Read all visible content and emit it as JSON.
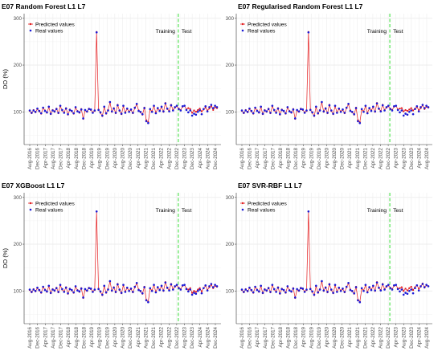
{
  "chart_data": [
    {
      "type": "line",
      "title": "E07 Random Forest L1 L7",
      "ylabel": "DO (%)",
      "xlabel": "",
      "ylim": [
        30,
        310
      ],
      "yticks": [
        100,
        200,
        300
      ],
      "x_ticks": [
        "Aug-2016",
        "Dec-2016",
        "Apr-2017",
        "Aug-2017",
        "Dec-2017",
        "Apr-2018",
        "Aug-2018",
        "Dec-2018",
        "Apr-2019",
        "Aug-2019",
        "Dec-2019",
        "Apr-2020",
        "Aug-2020",
        "Dec-2020",
        "Apr-2021",
        "Aug-2021",
        "Dec-2021",
        "Apr-2022",
        "Aug-2022",
        "Dec-2022",
        "Aug-2023",
        "Dec-2023",
        "Apr-2024",
        "Aug-2024",
        "Dec-2024"
      ],
      "split_at": "Dec-2022",
      "training_label": "Training",
      "test_label": "Test",
      "legend": [
        "Predicted values",
        "Real values"
      ],
      "legend_position": "top-left",
      "grid": true,
      "series": [
        {
          "name": "Predicted values",
          "color": "#e41a1c",
          "values": [
            102,
            97,
            104,
            99,
            106,
            101,
            96,
            108,
            103,
            98,
            110,
            95,
            104,
            100,
            107,
            97,
            112,
            103,
            99,
            108,
            94,
            105,
            101,
            96,
            109,
            102,
            98,
            106,
            85,
            103,
            100,
            107,
            104,
            99,
            102,
            271,
            105,
            98,
            91,
            110,
            96,
            104,
            120,
            100,
            108,
            97,
            115,
            102,
            95,
            112,
            99,
            106,
            101,
            104,
            97,
            108,
            116,
            103,
            99,
            94,
            109,
            82,
            78,
            105,
            101,
            112,
            98,
            107,
            103,
            110,
            100,
            119,
            106,
            102,
            115,
            104,
            109,
            112,
            107,
            104,
            111,
            113,
            105,
            108,
            106,
            98,
            103,
            100,
            104,
            107,
            101,
            105,
            109,
            103,
            107,
            112,
            104,
            110,
            108
          ]
        },
        {
          "name": "Real values",
          "color": "#1a1ad6",
          "values": [
            103,
            98,
            103,
            100,
            107,
            102,
            97,
            109,
            102,
            99,
            111,
            96,
            103,
            101,
            106,
            98,
            113,
            104,
            98,
            107,
            95,
            104,
            102,
            97,
            110,
            101,
            99,
            105,
            86,
            104,
            101,
            106,
            105,
            98,
            103,
            270,
            104,
            99,
            92,
            111,
            97,
            103,
            121,
            101,
            107,
            98,
            114,
            103,
            96,
            113,
            98,
            107,
            100,
            105,
            98,
            109,
            117,
            102,
            100,
            95,
            108,
            80,
            76,
            106,
            100,
            113,
            97,
            108,
            102,
            111,
            101,
            118,
            107,
            101,
            114,
            103,
            110,
            113,
            106,
            103,
            112,
            113,
            104,
            99,
            103,
            92,
            96,
            94,
            100,
            103,
            95,
            106,
            112,
            101,
            110,
            115,
            108,
            113,
            110
          ]
        }
      ]
    },
    {
      "type": "line",
      "title": "E07 Regularised Random Forest L1 L7",
      "ylabel": "",
      "xlabel": "",
      "ylim": [
        30,
        310
      ],
      "yticks": [
        100,
        200,
        300
      ],
      "x_ticks": [
        "Aug-2016",
        "Dec-2016",
        "Apr-2017",
        "Aug-2017",
        "Dec-2017",
        "Apr-2018",
        "Aug-2018",
        "Dec-2018",
        "Apr-2019",
        "Aug-2019",
        "Dec-2019",
        "Apr-2020",
        "Aug-2020",
        "Dec-2020",
        "Apr-2021",
        "Aug-2021",
        "Dec-2021",
        "Apr-2022",
        "Aug-2022",
        "Dec-2022",
        "Apr-2023",
        "Aug-2023",
        "Dec-2023",
        "Apr-2024",
        "Aug-2024"
      ],
      "split_at": "Dec-2022",
      "training_label": "Training",
      "test_label": "Test",
      "legend": [
        "Predicted values",
        "Real values"
      ],
      "legend_position": "top-left",
      "grid": true,
      "series": [
        {
          "name": "Predicted values",
          "color": "#e41a1c",
          "values": [
            102,
            97,
            104,
            99,
            106,
            101,
            96,
            108,
            103,
            98,
            110,
            95,
            104,
            100,
            107,
            97,
            112,
            103,
            99,
            108,
            94,
            105,
            101,
            96,
            109,
            102,
            98,
            106,
            85,
            103,
            100,
            107,
            104,
            99,
            102,
            271,
            105,
            98,
            91,
            110,
            96,
            104,
            120,
            100,
            108,
            97,
            115,
            102,
            95,
            112,
            99,
            106,
            101,
            104,
            97,
            108,
            116,
            103,
            99,
            94,
            109,
            82,
            78,
            105,
            101,
            112,
            98,
            107,
            103,
            110,
            100,
            119,
            106,
            102,
            115,
            104,
            109,
            112,
            107,
            104,
            111,
            113,
            105,
            107,
            108,
            101,
            104,
            102,
            105,
            108,
            103,
            107,
            110,
            104,
            108,
            114,
            106,
            111,
            109
          ]
        },
        {
          "name": "Real values",
          "color": "#1a1ad6",
          "values": [
            103,
            98,
            103,
            100,
            107,
            102,
            97,
            109,
            102,
            99,
            111,
            96,
            103,
            101,
            106,
            98,
            113,
            104,
            98,
            107,
            95,
            104,
            102,
            97,
            110,
            101,
            99,
            105,
            86,
            104,
            101,
            106,
            105,
            98,
            103,
            270,
            104,
            99,
            92,
            111,
            97,
            103,
            121,
            101,
            107,
            98,
            114,
            103,
            96,
            113,
            98,
            107,
            100,
            105,
            98,
            109,
            117,
            102,
            100,
            95,
            108,
            80,
            76,
            106,
            100,
            113,
            97,
            108,
            102,
            111,
            101,
            118,
            107,
            101,
            114,
            103,
            110,
            113,
            106,
            103,
            112,
            113,
            104,
            99,
            103,
            92,
            96,
            94,
            100,
            103,
            95,
            106,
            112,
            101,
            110,
            115,
            108,
            113,
            110
          ]
        }
      ]
    },
    {
      "type": "line",
      "title": "E07 XGBoost L1 L7",
      "ylabel": "DO (%)",
      "xlabel": "",
      "ylim": [
        30,
        310
      ],
      "yticks": [
        100,
        200,
        300
      ],
      "x_ticks": [
        "Aug-2016",
        "Dec-2016",
        "Apr-2017",
        "Aug-2017",
        "Dec-2017",
        "Apr-2018",
        "Aug-2018",
        "Dec-2018",
        "Apr-2019",
        "Aug-2019",
        "Dec-2019",
        "Apr-2020",
        "Aug-2020",
        "Dec-2020",
        "Apr-2021",
        "Aug-2021",
        "Dec-2021",
        "Apr-2022",
        "Aug-2022",
        "Dec-2022",
        "Aug-2023",
        "Dec-2023",
        "Apr-2024",
        "Aug-2024",
        "Dec-2024"
      ],
      "split_at": "Dec-2022",
      "training_label": "Training",
      "test_label": "Test",
      "legend": [
        "Predicted values",
        "Real values"
      ],
      "legend_position": "top-left",
      "grid": true,
      "series": [
        {
          "name": "Predicted values",
          "color": "#e41a1c",
          "values": [
            102,
            97,
            104,
            99,
            106,
            101,
            96,
            108,
            103,
            98,
            110,
            95,
            104,
            100,
            107,
            97,
            112,
            103,
            99,
            108,
            94,
            105,
            101,
            96,
            109,
            102,
            98,
            106,
            85,
            103,
            100,
            107,
            104,
            99,
            102,
            270,
            105,
            98,
            91,
            110,
            96,
            104,
            120,
            100,
            108,
            97,
            115,
            102,
            95,
            112,
            99,
            106,
            101,
            104,
            97,
            108,
            116,
            103,
            99,
            94,
            109,
            81,
            77,
            105,
            101,
            112,
            98,
            107,
            103,
            110,
            100,
            119,
            106,
            102,
            115,
            104,
            109,
            112,
            107,
            104,
            111,
            113,
            105,
            103,
            106,
            96,
            100,
            98,
            103,
            106,
            99,
            106,
            111,
            102,
            108,
            113,
            106,
            111,
            109
          ]
        },
        {
          "name": "Real values",
          "color": "#1a1ad6",
          "values": [
            103,
            98,
            103,
            100,
            107,
            102,
            97,
            109,
            102,
            99,
            111,
            96,
            103,
            101,
            106,
            98,
            113,
            104,
            98,
            107,
            95,
            104,
            102,
            97,
            110,
            101,
            99,
            105,
            86,
            104,
            101,
            106,
            105,
            98,
            103,
            270,
            104,
            99,
            92,
            111,
            97,
            103,
            121,
            101,
            107,
            98,
            114,
            103,
            96,
            113,
            98,
            107,
            100,
            105,
            98,
            109,
            117,
            102,
            100,
            95,
            108,
            80,
            76,
            106,
            100,
            113,
            97,
            108,
            102,
            111,
            101,
            118,
            107,
            101,
            114,
            103,
            110,
            113,
            106,
            103,
            112,
            113,
            104,
            99,
            103,
            92,
            96,
            94,
            100,
            103,
            95,
            106,
            112,
            101,
            110,
            115,
            108,
            113,
            110
          ]
        }
      ]
    },
    {
      "type": "line",
      "title": "E07 SVR-RBF L1 L7",
      "ylabel": "",
      "xlabel": "",
      "ylim": [
        30,
        310
      ],
      "yticks": [
        100,
        200,
        300
      ],
      "x_ticks": [
        "Aug-2016",
        "Dec-2016",
        "Apr-2017",
        "Aug-2017",
        "Dec-2017",
        "Apr-2018",
        "Aug-2018",
        "Dec-2018",
        "Apr-2019",
        "Aug-2019",
        "Dec-2019",
        "Apr-2020",
        "Aug-2020",
        "Dec-2020",
        "Apr-2021",
        "Aug-2021",
        "Dec-2021",
        "Apr-2022",
        "Aug-2022",
        "Dec-2022",
        "Apr-2023",
        "Aug-2023",
        "Dec-2023",
        "Apr-2024",
        "Aug-2024"
      ],
      "split_at": "Dec-2022",
      "training_label": "Training",
      "test_label": "Test",
      "legend": [
        "Predicted values",
        "Real values"
      ],
      "legend_position": "top-left",
      "grid": true,
      "series": [
        {
          "name": "Predicted values",
          "color": "#e41a1c",
          "values": [
            102,
            97,
            104,
            99,
            106,
            101,
            96,
            108,
            103,
            98,
            110,
            95,
            104,
            100,
            107,
            97,
            112,
            103,
            99,
            108,
            94,
            105,
            101,
            96,
            109,
            102,
            98,
            106,
            85,
            103,
            100,
            107,
            104,
            99,
            102,
            270,
            105,
            98,
            91,
            110,
            96,
            104,
            120,
            100,
            108,
            97,
            115,
            102,
            95,
            112,
            99,
            106,
            101,
            104,
            97,
            108,
            116,
            103,
            99,
            94,
            109,
            81,
            77,
            105,
            101,
            112,
            98,
            107,
            103,
            110,
            100,
            119,
            106,
            102,
            115,
            104,
            109,
            112,
            107,
            104,
            111,
            113,
            105,
            106,
            108,
            100,
            105,
            101,
            106,
            109,
            102,
            108,
            112,
            105,
            109,
            116,
            107,
            112,
            110
          ]
        },
        {
          "name": "Real values",
          "color": "#1a1ad6",
          "values": [
            103,
            98,
            103,
            100,
            107,
            102,
            97,
            109,
            102,
            99,
            111,
            96,
            103,
            101,
            106,
            98,
            113,
            104,
            98,
            107,
            95,
            104,
            102,
            97,
            110,
            101,
            99,
            105,
            86,
            104,
            101,
            106,
            105,
            98,
            103,
            270,
            104,
            99,
            92,
            111,
            97,
            103,
            121,
            101,
            107,
            98,
            114,
            103,
            96,
            113,
            98,
            107,
            100,
            105,
            98,
            109,
            117,
            102,
            100,
            95,
            108,
            80,
            76,
            106,
            100,
            113,
            97,
            108,
            102,
            111,
            101,
            118,
            107,
            101,
            114,
            103,
            110,
            113,
            106,
            103,
            112,
            113,
            104,
            99,
            103,
            92,
            96,
            94,
            100,
            103,
            95,
            106,
            112,
            101,
            110,
            115,
            108,
            113,
            110
          ]
        }
      ]
    }
  ]
}
